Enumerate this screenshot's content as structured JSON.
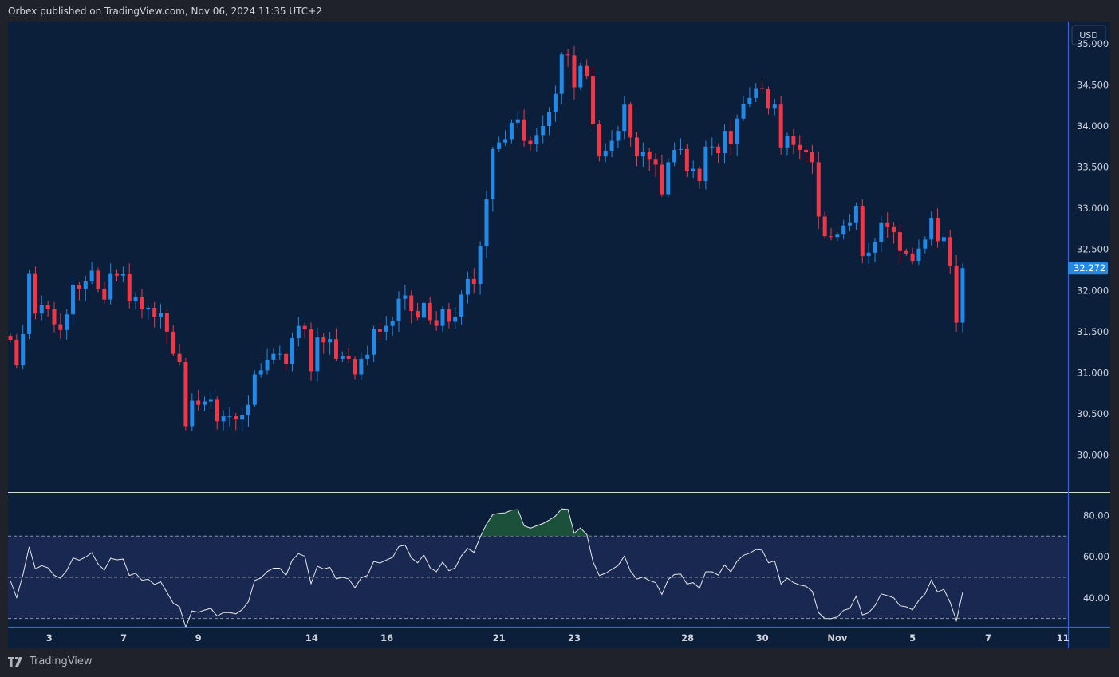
{
  "header": {
    "text": "Orbex published on TradingView.com, Nov 06, 2024 11:35 UTC+2"
  },
  "footer": {
    "brand": "TradingView"
  },
  "currency": "USD",
  "colors": {
    "up": "#2189e8",
    "down": "#f23645",
    "background": "#0b1f3b",
    "rsi_line": "#e8e8e8",
    "rsi_band": "#182850",
    "overbought_fill": "#1e5a3c",
    "last_price_bg": "#2189e8"
  },
  "chart_data": {
    "type": "candlestick",
    "timeframe": "4H",
    "first_open": 31.45,
    "closes": [
      31.4,
      31.09,
      31.47,
      32.21,
      31.72,
      31.82,
      31.77,
      31.59,
      31.52,
      31.71,
      32.07,
      32.02,
      32.11,
      32.24,
      32.02,
      31.89,
      32.21,
      32.18,
      32.2,
      31.87,
      31.92,
      31.77,
      31.79,
      31.68,
      31.73,
      31.5,
      31.23,
      31.13,
      30.35,
      30.66,
      30.61,
      30.65,
      30.68,
      30.41,
      30.47,
      30.47,
      30.43,
      30.49,
      30.61,
      30.98,
      31.03,
      31.16,
      31.23,
      31.23,
      31.11,
      31.42,
      31.57,
      31.53,
      31.02,
      31.43,
      31.37,
      31.41,
      31.17,
      31.2,
      31.17,
      30.98,
      31.17,
      31.22,
      31.53,
      31.5,
      31.57,
      31.63,
      31.9,
      31.94,
      31.75,
      31.67,
      31.85,
      31.64,
      31.57,
      31.77,
      31.62,
      31.68,
      31.95,
      32.14,
      32.08,
      32.54,
      33.11,
      33.72,
      33.8,
      33.84,
      34.04,
      34.08,
      33.82,
      33.78,
      33.89,
      34.0,
      34.17,
      34.39,
      34.87,
      34.86,
      34.47,
      34.73,
      34.61,
      34.02,
      33.63,
      33.7,
      33.82,
      33.94,
      34.26,
      33.86,
      33.63,
      33.69,
      33.59,
      33.53,
      33.17,
      33.56,
      33.71,
      33.72,
      33.45,
      33.48,
      33.33,
      33.75,
      33.75,
      33.67,
      33.94,
      33.78,
      34.09,
      34.27,
      34.34,
      34.46,
      34.45,
      34.21,
      34.26,
      33.74,
      33.88,
      33.77,
      33.71,
      33.68,
      33.56,
      32.9,
      32.66,
      32.65,
      32.68,
      32.79,
      32.82,
      33.03,
      32.42,
      32.46,
      32.59,
      32.82,
      32.77,
      32.71,
      32.48,
      32.45,
      32.36,
      32.51,
      32.62,
      32.88,
      32.6,
      32.65,
      32.3,
      31.61,
      32.272
    ],
    "last_price": "32.272",
    "y_ticks": [
      "35.000",
      "34.500",
      "34.000",
      "33.500",
      "33.000",
      "32.500",
      "32.000",
      "31.500",
      "31.000",
      "30.500",
      "30.000"
    ],
    "ylim": [
      29.55,
      35.27
    ],
    "x_ticks": [
      {
        "label": "3",
        "bar": 6.2
      },
      {
        "label": "7",
        "bar": 18.1
      },
      {
        "label": "9",
        "bar": 30.0
      },
      {
        "label": "14",
        "bar": 48.1
      },
      {
        "label": "16",
        "bar": 60.1
      },
      {
        "label": "21",
        "bar": 78.0
      },
      {
        "label": "23",
        "bar": 90.0
      },
      {
        "label": "28",
        "bar": 108.1
      },
      {
        "label": "30",
        "bar": 120.0
      },
      {
        "label": "Nov",
        "bar": 132.0
      },
      {
        "label": "5",
        "bar": 144.0
      },
      {
        "label": "7",
        "bar": 156.1
      },
      {
        "label": "11",
        "bar": 168.0
      }
    ],
    "rsi": {
      "period": 14,
      "ticks": [
        "80.00",
        "60.00",
        "40.00"
      ],
      "levels": [
        70,
        50,
        30
      ],
      "ylim": [
        26,
        91
      ]
    }
  }
}
